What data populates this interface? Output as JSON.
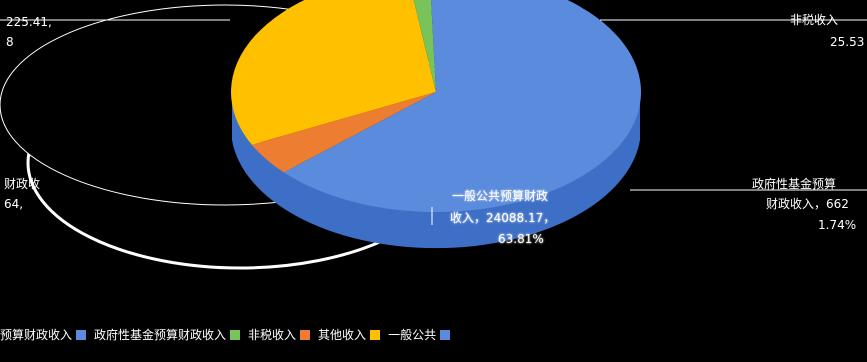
{
  "chart_data": {
    "type": "pie",
    "title": "",
    "slices": [
      {
        "name": "一般公共预算财政收入",
        "value": 24088.17,
        "percent": "63.81%",
        "color": "#5b8bdc"
      },
      {
        "name": "政府性基金预算财政收入",
        "value": null,
        "percent": "1.74%",
        "color": "#78c35a"
      },
      {
        "name": "其他收入",
        "value": null,
        "percent": "",
        "color": "#ffc000"
      },
      {
        "name": "非税收入",
        "value": null,
        "percent": "",
        "color": "#ed7d31"
      }
    ]
  },
  "labels": {
    "top_left_fragment_1": "225.41,",
    "top_left_fragment_2": "8",
    "top_right_fragment_1": "非税收入",
    "top_right_fragment_2": "25.53",
    "left_mid_fragment_1": "财政收",
    "left_mid_fragment_2": "64,",
    "right_label_1": "政府性基金预算",
    "right_label_2": "财政收入，662",
    "right_label_3": "1.74%",
    "center_label_1": "一般公共预算财政",
    "center_label_2": "收入，24088.17，",
    "center_label_3": "63.81%"
  },
  "legend": [
    {
      "label": "预算财政收入",
      "color": "#5b8bdc"
    },
    {
      "label": "政府性基金预算财政收入",
      "color": "#78c35a"
    },
    {
      "label": "非税收入",
      "color": "#ed7d31"
    },
    {
      "label": "其他收入",
      "color": "#ffc000"
    },
    {
      "label": "一般公共",
      "color": "#5b8bdc"
    }
  ]
}
